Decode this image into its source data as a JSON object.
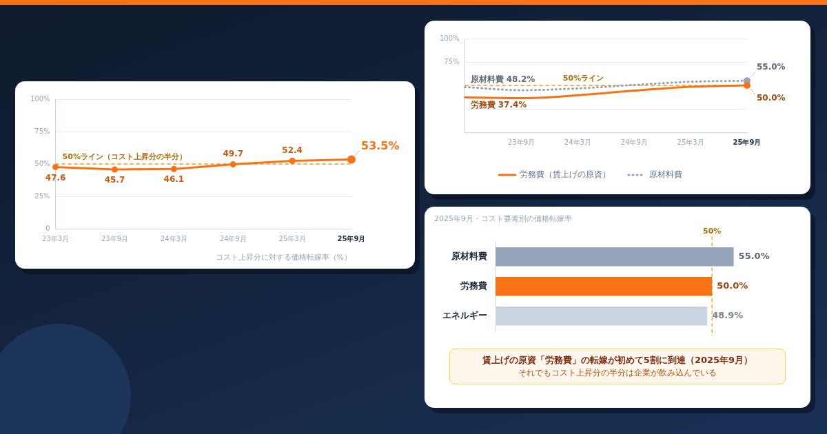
{
  "chart_data": [
    {
      "type": "line",
      "categories": [
        "23年3月",
        "23年9月",
        "24年3月",
        "24年9月",
        "25年3月",
        "25年9月"
      ],
      "series": [
        {
          "color": "#f97316",
          "values": [
            47.6,
            45.7,
            46.1,
            49.7,
            52.4,
            53.5
          ],
          "value_labels": [
            "47.6",
            "45.7",
            "46.1",
            "49.7",
            "52.4",
            "53.5%"
          ]
        }
      ],
      "ylim": [
        0,
        100
      ],
      "yticks": [
        0,
        {
          "value": 25,
          "label": "25%"
        },
        {
          "value": 50,
          "label": "50%"
        },
        {
          "value": 75,
          "label": "75%"
        },
        {
          "value": 100,
          "label": "100%"
        }
      ],
      "grid": "y",
      "marker": "circle",
      "ref_lines": [
        {
          "axis": "y",
          "value": 50,
          "label": "50%ライン（コスト上昇分の半分）",
          "color": "#f59e0b",
          "line_style": "dashed"
        }
      ],
      "annotations": [
        "コスト上昇分に対する価格転嫁率（%）"
      ]
    },
    {
      "type": "line",
      "categories": [
        null,
        "23年9月",
        "24年3月",
        "24年9月",
        "25年3月",
        "25年9月"
      ],
      "series": [
        {
          "name": "労務費（賃上げの原資）",
          "color": "#f97316",
          "values": [
            37.4,
            36.4,
            39.5,
            44.4,
            48.5,
            50.0
          ],
          "value_labels": [
            "労務費 37.4%",
            null,
            null,
            null,
            null,
            "50.0%"
          ]
        },
        {
          "name": "原材料費",
          "color": "#94a3b8",
          "line_style": "dotted",
          "values": [
            48.2,
            44.9,
            46.8,
            50.5,
            53.9,
            55.0
          ],
          "value_labels": [
            "原材料費 48.2%",
            null,
            null,
            null,
            null,
            "55.0%"
          ]
        }
      ],
      "ylim": [
        0,
        100
      ],
      "yticks": [
        {
          "value": 0,
          "label": null
        },
        {
          "value": 25,
          "label": null
        },
        {
          "value": 50,
          "label": null
        },
        {
          "value": 75,
          "label": "75%"
        },
        {
          "value": 100,
          "label": "100%"
        }
      ],
      "grid": "y",
      "legend": "bottom",
      "ref_lines": [
        {
          "axis": "y",
          "value": 50,
          "label": "50%ライン",
          "color": "#f59e0b",
          "line_style": "dashed"
        }
      ]
    },
    {
      "type": "bar",
      "orientation": "horizontal",
      "title": "2025年9月・コスト要素別の価格転嫁率",
      "categories": [
        "原材料費",
        "労務費",
        "エネルギー"
      ],
      "values": [
        55.0,
        50.0,
        48.9
      ],
      "colors": [
        "#94a3b8",
        "#f97316",
        "#cbd5e1"
      ],
      "value_labels": [
        "55.0%",
        "50.0%",
        "48.9%"
      ],
      "tick_labels": "y",
      "ref_lines": [
        {
          "axis": "x",
          "value": 50,
          "label": "50%",
          "color": "#f59e0b",
          "line_style": "dashed"
        }
      ],
      "annotations": [
        "賃上げの原資「労務費」の転嫁が初めて5割に到達（2025年9月）",
        "それでもコスト上昇分の半分は企業が飲み込んでいる"
      ]
    }
  ]
}
